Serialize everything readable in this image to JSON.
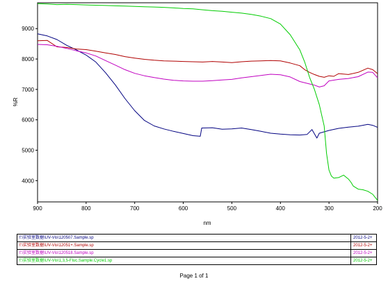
{
  "chart_data": {
    "type": "line",
    "xlabel": "nm",
    "ylabel": "%R",
    "xlim": [
      900,
      200
    ],
    "ylim": [
      3300,
      9850
    ],
    "x_ticks": [
      900,
      800,
      700,
      600,
      500,
      400,
      300,
      200
    ],
    "y_ticks": [
      4000,
      5000,
      6000,
      7000,
      8000,
      9000
    ],
    "series": [
      {
        "name": "f:\\实验室数据\\UV-Vis\\120507.Sample.sp",
        "date": "2012-5-2+",
        "color": "#000080",
        "points": [
          [
            900,
            8830
          ],
          [
            880,
            8760
          ],
          [
            860,
            8640
          ],
          [
            840,
            8450
          ],
          [
            820,
            8300
          ],
          [
            800,
            8130
          ],
          [
            780,
            7900
          ],
          [
            760,
            7550
          ],
          [
            740,
            7150
          ],
          [
            720,
            6700
          ],
          [
            700,
            6300
          ],
          [
            680,
            5980
          ],
          [
            660,
            5800
          ],
          [
            640,
            5700
          ],
          [
            620,
            5620
          ],
          [
            600,
            5550
          ],
          [
            580,
            5480
          ],
          [
            565,
            5460
          ],
          [
            562,
            5730
          ],
          [
            540,
            5740
          ],
          [
            520,
            5690
          ],
          [
            500,
            5700
          ],
          [
            480,
            5730
          ],
          [
            460,
            5680
          ],
          [
            440,
            5620
          ],
          [
            420,
            5560
          ],
          [
            400,
            5530
          ],
          [
            380,
            5510
          ],
          [
            360,
            5500
          ],
          [
            345,
            5520
          ],
          [
            335,
            5680
          ],
          [
            325,
            5400
          ],
          [
            320,
            5560
          ],
          [
            300,
            5650
          ],
          [
            280,
            5720
          ],
          [
            260,
            5760
          ],
          [
            240,
            5790
          ],
          [
            220,
            5850
          ],
          [
            210,
            5820
          ],
          [
            200,
            5750
          ]
        ]
      },
      {
        "name": "f:\\实验室数据\\UV-Vis\\12051+.Sample.sp",
        "date": "2012-5-2+",
        "color": "#b00000",
        "points": [
          [
            900,
            8600
          ],
          [
            880,
            8610
          ],
          [
            860,
            8400
          ],
          [
            840,
            8380
          ],
          [
            820,
            8330
          ],
          [
            800,
            8310
          ],
          [
            780,
            8260
          ],
          [
            760,
            8200
          ],
          [
            740,
            8150
          ],
          [
            720,
            8080
          ],
          [
            700,
            8030
          ],
          [
            680,
            7990
          ],
          [
            660,
            7960
          ],
          [
            640,
            7940
          ],
          [
            620,
            7930
          ],
          [
            600,
            7920
          ],
          [
            580,
            7910
          ],
          [
            560,
            7900
          ],
          [
            540,
            7920
          ],
          [
            520,
            7900
          ],
          [
            500,
            7880
          ],
          [
            480,
            7910
          ],
          [
            460,
            7930
          ],
          [
            440,
            7940
          ],
          [
            420,
            7950
          ],
          [
            400,
            7940
          ],
          [
            380,
            7870
          ],
          [
            360,
            7780
          ],
          [
            350,
            7650
          ],
          [
            340,
            7560
          ],
          [
            330,
            7490
          ],
          [
            320,
            7430
          ],
          [
            310,
            7400
          ],
          [
            300,
            7450
          ],
          [
            290,
            7430
          ],
          [
            280,
            7520
          ],
          [
            260,
            7490
          ],
          [
            240,
            7560
          ],
          [
            220,
            7700
          ],
          [
            210,
            7650
          ],
          [
            200,
            7520
          ]
        ]
      },
      {
        "name": "f:\\实验室数据\\UV-Vis\\120518.Sample.sp",
        "date": "2012-5-2+",
        "color": "#c000c0",
        "points": [
          [
            900,
            8480
          ],
          [
            880,
            8470
          ],
          [
            860,
            8420
          ],
          [
            840,
            8350
          ],
          [
            820,
            8270
          ],
          [
            800,
            8200
          ],
          [
            780,
            8100
          ],
          [
            760,
            7950
          ],
          [
            740,
            7800
          ],
          [
            720,
            7650
          ],
          [
            700,
            7530
          ],
          [
            680,
            7450
          ],
          [
            660,
            7390
          ],
          [
            640,
            7340
          ],
          [
            620,
            7300
          ],
          [
            600,
            7280
          ],
          [
            580,
            7270
          ],
          [
            560,
            7270
          ],
          [
            540,
            7290
          ],
          [
            520,
            7310
          ],
          [
            500,
            7330
          ],
          [
            480,
            7380
          ],
          [
            460,
            7420
          ],
          [
            440,
            7460
          ],
          [
            420,
            7500
          ],
          [
            400,
            7480
          ],
          [
            380,
            7410
          ],
          [
            360,
            7260
          ],
          [
            340,
            7180
          ],
          [
            330,
            7140
          ],
          [
            320,
            7080
          ],
          [
            310,
            7120
          ],
          [
            300,
            7280
          ],
          [
            280,
            7330
          ],
          [
            260,
            7360
          ],
          [
            240,
            7420
          ],
          [
            220,
            7570
          ],
          [
            210,
            7560
          ],
          [
            200,
            7380
          ]
        ]
      },
      {
        "name": "f:\\实验室数据\\UV-Vis\\1,3,5-Fluc.Sample.Cycle1.sp",
        "date": "2012-5-2+",
        "color": "#00cc00",
        "points": [
          [
            900,
            9820
          ],
          [
            880,
            9810
          ],
          [
            860,
            9790
          ],
          [
            840,
            9800
          ],
          [
            820,
            9790
          ],
          [
            800,
            9780
          ],
          [
            780,
            9770
          ],
          [
            760,
            9760
          ],
          [
            740,
            9750
          ],
          [
            720,
            9740
          ],
          [
            700,
            9730
          ],
          [
            680,
            9720
          ],
          [
            660,
            9710
          ],
          [
            640,
            9700
          ],
          [
            620,
            9680
          ],
          [
            600,
            9660
          ],
          [
            580,
            9650
          ],
          [
            560,
            9620
          ],
          [
            540,
            9590
          ],
          [
            520,
            9570
          ],
          [
            500,
            9540
          ],
          [
            480,
            9510
          ],
          [
            460,
            9470
          ],
          [
            440,
            9410
          ],
          [
            420,
            9330
          ],
          [
            400,
            9150
          ],
          [
            380,
            8800
          ],
          [
            360,
            8300
          ],
          [
            350,
            7900
          ],
          [
            340,
            7400
          ],
          [
            330,
            7000
          ],
          [
            320,
            6500
          ],
          [
            310,
            5800
          ],
          [
            305,
            4900
          ],
          [
            300,
            4350
          ],
          [
            295,
            4150
          ],
          [
            290,
            4080
          ],
          [
            280,
            4100
          ],
          [
            270,
            4180
          ],
          [
            260,
            4050
          ],
          [
            255,
            3950
          ],
          [
            250,
            3820
          ],
          [
            240,
            3720
          ],
          [
            230,
            3700
          ],
          [
            220,
            3650
          ],
          [
            210,
            3550
          ],
          [
            205,
            3450
          ],
          [
            200,
            3350
          ]
        ]
      }
    ]
  },
  "footer": "Page 1 of 1"
}
